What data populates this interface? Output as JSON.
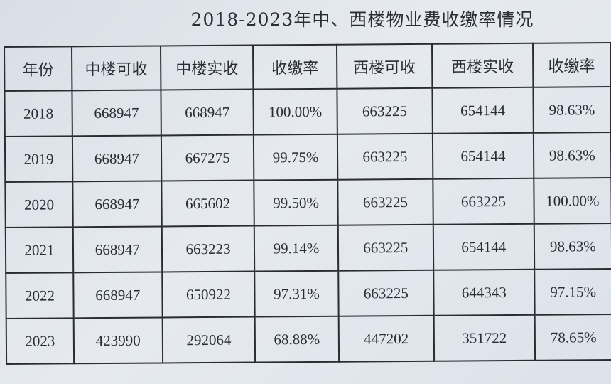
{
  "title": "2018-2023年中、西楼物业费收缴率情况",
  "table": {
    "headers": [
      "年份",
      "中楼可收",
      "中楼实收",
      "收缴率",
      "西楼可收",
      "西楼实收",
      "收缴率"
    ],
    "rows": [
      [
        "2018",
        "668947",
        "668947",
        "100.00%",
        "663225",
        "654144",
        "98.63%"
      ],
      [
        "2019",
        "668947",
        "667275",
        "99.75%",
        "663225",
        "654144",
        "98.63%"
      ],
      [
        "2020",
        "668947",
        "665602",
        "99.50%",
        "663225",
        "663225",
        "100.00%"
      ],
      [
        "2021",
        "668947",
        "663223",
        "99.14%",
        "663225",
        "654144",
        "98.63%"
      ],
      [
        "2022",
        "668947",
        "650922",
        "97.31%",
        "663225",
        "644343",
        "97.15%"
      ],
      [
        "2023",
        "423990",
        "292064",
        "68.88%",
        "447202",
        "351722",
        "78.65%"
      ]
    ]
  }
}
